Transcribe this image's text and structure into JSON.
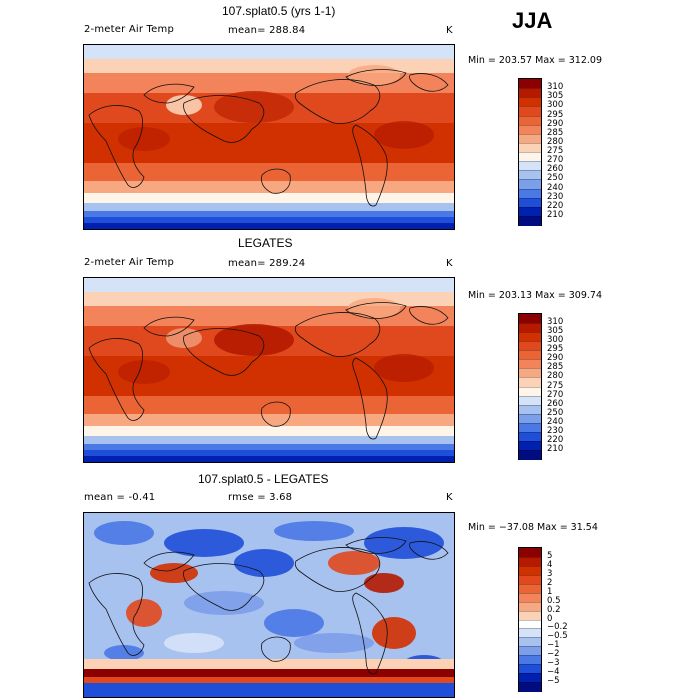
{
  "season": "JJA",
  "panels": [
    {
      "title": "107.splat0.5 (yrs 1-1)",
      "left_label": "2-meter Air Temp",
      "mid_label": "mean= 288.84",
      "units": "K",
      "minmax": "Min = 203.57 Max = 312.09",
      "levels": [
        "310",
        "305",
        "300",
        "295",
        "290",
        "285",
        "280",
        "275",
        "270",
        "260",
        "250",
        "240",
        "230",
        "220",
        "210"
      ],
      "colors": [
        "#8b0000",
        "#b51a00",
        "#d13000",
        "#e0491d",
        "#ea6436",
        "#f2835a",
        "#f8a880",
        "#fcd2b6",
        "#fff4e8",
        "#d5e3f8",
        "#a8c2f0",
        "#7c9fe9",
        "#4a78e4",
        "#1f4fd8",
        "#0020b0",
        "#000c80"
      ]
    },
    {
      "title": "LEGATES",
      "left_label": "2-meter Air Temp",
      "mid_label": "mean= 289.24",
      "units": "K",
      "minmax": "Min = 203.13 Max = 309.74",
      "levels": [
        "310",
        "305",
        "300",
        "295",
        "290",
        "285",
        "280",
        "275",
        "270",
        "260",
        "250",
        "240",
        "230",
        "220",
        "210"
      ],
      "colors": [
        "#8b0000",
        "#b51a00",
        "#d13000",
        "#e0491d",
        "#ea6436",
        "#f2835a",
        "#f8a880",
        "#fcd2b6",
        "#fff4e8",
        "#d5e3f8",
        "#a8c2f0",
        "#7c9fe9",
        "#4a78e4",
        "#1f4fd8",
        "#0020b0",
        "#000c80"
      ]
    },
    {
      "title": "107.splat0.5 - LEGATES",
      "left_label": "mean =   -0.41",
      "mid_label": "rmse =    3.68",
      "units": "K",
      "minmax": "Min = −37.08 Max =   31.54",
      "levels": [
        "5",
        "4",
        "3",
        "2",
        "1",
        "0.5",
        "0.2",
        "0",
        "−0.2",
        "−0.5",
        "−1",
        "−2",
        "−3",
        "−4",
        "−5"
      ],
      "colors": [
        "#8b0000",
        "#b51a00",
        "#d13000",
        "#e0491d",
        "#ea6436",
        "#f2835a",
        "#f8a880",
        "#fcd2b6",
        "#ffffff",
        "#d5e3f8",
        "#a8c2f0",
        "#7c9fe9",
        "#4a78e4",
        "#1f4fd8",
        "#0020b0",
        "#000c80"
      ]
    }
  ]
}
